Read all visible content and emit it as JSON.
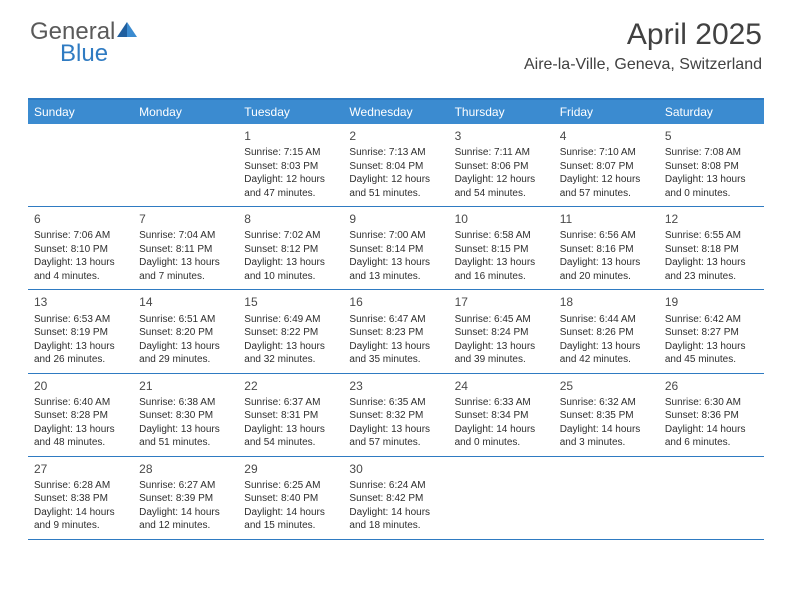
{
  "logo": {
    "text1": "General",
    "text2": "Blue"
  },
  "title": "April 2025",
  "location": "Aire-la-Ville, Geneva, Switzerland",
  "colors": {
    "header_bg": "#3b8bd0",
    "border": "#2f7bc2",
    "text": "#2e2e2e",
    "title_text": "#414141"
  },
  "daynames": [
    "Sunday",
    "Monday",
    "Tuesday",
    "Wednesday",
    "Thursday",
    "Friday",
    "Saturday"
  ],
  "weeks": [
    [
      null,
      null,
      {
        "n": "1",
        "sr": "Sunrise: 7:15 AM",
        "ss": "Sunset: 8:03 PM",
        "d1": "Daylight: 12 hours",
        "d2": "and 47 minutes."
      },
      {
        "n": "2",
        "sr": "Sunrise: 7:13 AM",
        "ss": "Sunset: 8:04 PM",
        "d1": "Daylight: 12 hours",
        "d2": "and 51 minutes."
      },
      {
        "n": "3",
        "sr": "Sunrise: 7:11 AM",
        "ss": "Sunset: 8:06 PM",
        "d1": "Daylight: 12 hours",
        "d2": "and 54 minutes."
      },
      {
        "n": "4",
        "sr": "Sunrise: 7:10 AM",
        "ss": "Sunset: 8:07 PM",
        "d1": "Daylight: 12 hours",
        "d2": "and 57 minutes."
      },
      {
        "n": "5",
        "sr": "Sunrise: 7:08 AM",
        "ss": "Sunset: 8:08 PM",
        "d1": "Daylight: 13 hours",
        "d2": "and 0 minutes."
      }
    ],
    [
      {
        "n": "6",
        "sr": "Sunrise: 7:06 AM",
        "ss": "Sunset: 8:10 PM",
        "d1": "Daylight: 13 hours",
        "d2": "and 4 minutes."
      },
      {
        "n": "7",
        "sr": "Sunrise: 7:04 AM",
        "ss": "Sunset: 8:11 PM",
        "d1": "Daylight: 13 hours",
        "d2": "and 7 minutes."
      },
      {
        "n": "8",
        "sr": "Sunrise: 7:02 AM",
        "ss": "Sunset: 8:12 PM",
        "d1": "Daylight: 13 hours",
        "d2": "and 10 minutes."
      },
      {
        "n": "9",
        "sr": "Sunrise: 7:00 AM",
        "ss": "Sunset: 8:14 PM",
        "d1": "Daylight: 13 hours",
        "d2": "and 13 minutes."
      },
      {
        "n": "10",
        "sr": "Sunrise: 6:58 AM",
        "ss": "Sunset: 8:15 PM",
        "d1": "Daylight: 13 hours",
        "d2": "and 16 minutes."
      },
      {
        "n": "11",
        "sr": "Sunrise: 6:56 AM",
        "ss": "Sunset: 8:16 PM",
        "d1": "Daylight: 13 hours",
        "d2": "and 20 minutes."
      },
      {
        "n": "12",
        "sr": "Sunrise: 6:55 AM",
        "ss": "Sunset: 8:18 PM",
        "d1": "Daylight: 13 hours",
        "d2": "and 23 minutes."
      }
    ],
    [
      {
        "n": "13",
        "sr": "Sunrise: 6:53 AM",
        "ss": "Sunset: 8:19 PM",
        "d1": "Daylight: 13 hours",
        "d2": "and 26 minutes."
      },
      {
        "n": "14",
        "sr": "Sunrise: 6:51 AM",
        "ss": "Sunset: 8:20 PM",
        "d1": "Daylight: 13 hours",
        "d2": "and 29 minutes."
      },
      {
        "n": "15",
        "sr": "Sunrise: 6:49 AM",
        "ss": "Sunset: 8:22 PM",
        "d1": "Daylight: 13 hours",
        "d2": "and 32 minutes."
      },
      {
        "n": "16",
        "sr": "Sunrise: 6:47 AM",
        "ss": "Sunset: 8:23 PM",
        "d1": "Daylight: 13 hours",
        "d2": "and 35 minutes."
      },
      {
        "n": "17",
        "sr": "Sunrise: 6:45 AM",
        "ss": "Sunset: 8:24 PM",
        "d1": "Daylight: 13 hours",
        "d2": "and 39 minutes."
      },
      {
        "n": "18",
        "sr": "Sunrise: 6:44 AM",
        "ss": "Sunset: 8:26 PM",
        "d1": "Daylight: 13 hours",
        "d2": "and 42 minutes."
      },
      {
        "n": "19",
        "sr": "Sunrise: 6:42 AM",
        "ss": "Sunset: 8:27 PM",
        "d1": "Daylight: 13 hours",
        "d2": "and 45 minutes."
      }
    ],
    [
      {
        "n": "20",
        "sr": "Sunrise: 6:40 AM",
        "ss": "Sunset: 8:28 PM",
        "d1": "Daylight: 13 hours",
        "d2": "and 48 minutes."
      },
      {
        "n": "21",
        "sr": "Sunrise: 6:38 AM",
        "ss": "Sunset: 8:30 PM",
        "d1": "Daylight: 13 hours",
        "d2": "and 51 minutes."
      },
      {
        "n": "22",
        "sr": "Sunrise: 6:37 AM",
        "ss": "Sunset: 8:31 PM",
        "d1": "Daylight: 13 hours",
        "d2": "and 54 minutes."
      },
      {
        "n": "23",
        "sr": "Sunrise: 6:35 AM",
        "ss": "Sunset: 8:32 PM",
        "d1": "Daylight: 13 hours",
        "d2": "and 57 minutes."
      },
      {
        "n": "24",
        "sr": "Sunrise: 6:33 AM",
        "ss": "Sunset: 8:34 PM",
        "d1": "Daylight: 14 hours",
        "d2": "and 0 minutes."
      },
      {
        "n": "25",
        "sr": "Sunrise: 6:32 AM",
        "ss": "Sunset: 8:35 PM",
        "d1": "Daylight: 14 hours",
        "d2": "and 3 minutes."
      },
      {
        "n": "26",
        "sr": "Sunrise: 6:30 AM",
        "ss": "Sunset: 8:36 PM",
        "d1": "Daylight: 14 hours",
        "d2": "and 6 minutes."
      }
    ],
    [
      {
        "n": "27",
        "sr": "Sunrise: 6:28 AM",
        "ss": "Sunset: 8:38 PM",
        "d1": "Daylight: 14 hours",
        "d2": "and 9 minutes."
      },
      {
        "n": "28",
        "sr": "Sunrise: 6:27 AM",
        "ss": "Sunset: 8:39 PM",
        "d1": "Daylight: 14 hours",
        "d2": "and 12 minutes."
      },
      {
        "n": "29",
        "sr": "Sunrise: 6:25 AM",
        "ss": "Sunset: 8:40 PM",
        "d1": "Daylight: 14 hours",
        "d2": "and 15 minutes."
      },
      {
        "n": "30",
        "sr": "Sunrise: 6:24 AM",
        "ss": "Sunset: 8:42 PM",
        "d1": "Daylight: 14 hours",
        "d2": "and 18 minutes."
      },
      null,
      null,
      null
    ]
  ]
}
